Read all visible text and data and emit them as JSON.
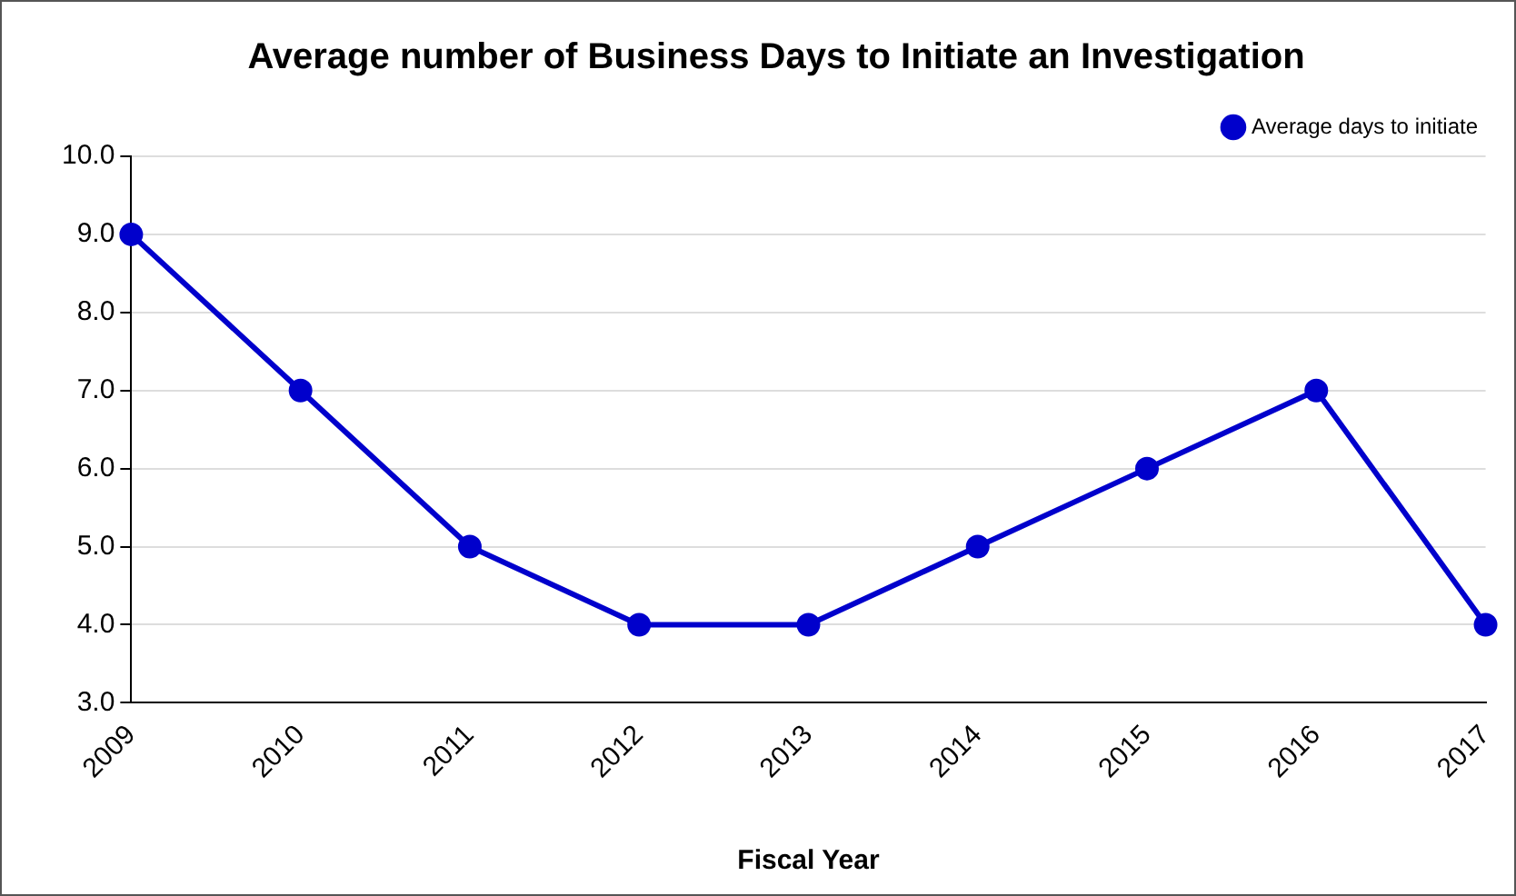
{
  "chart_data": {
    "type": "line",
    "title": "Average number of Business Days to Initiate an Investigation",
    "xlabel": "Fiscal Year",
    "categories": [
      "2009",
      "2010",
      "2011",
      "2012",
      "2013",
      "2014",
      "2015",
      "2016",
      "2017"
    ],
    "series": [
      {
        "name": "Average days to initiate",
        "color": "#0000cc",
        "values": [
          9,
          7,
          5,
          4,
          4,
          5,
          6,
          7,
          4
        ]
      }
    ],
    "ylim": [
      3,
      10
    ],
    "yticks": [
      {
        "value": 3,
        "label": "3.0"
      },
      {
        "value": 4,
        "label": "4.0"
      },
      {
        "value": 5,
        "label": "5.0"
      },
      {
        "value": 6,
        "label": "6.0"
      },
      {
        "value": 7,
        "label": "7.0"
      },
      {
        "value": 8,
        "label": "8.0"
      },
      {
        "value": 9,
        "label": "9.0"
      },
      {
        "value": 10,
        "label": "10.0"
      }
    ],
    "grid": "y",
    "legend": "top right",
    "marker": "circle",
    "line_style": "solid"
  }
}
